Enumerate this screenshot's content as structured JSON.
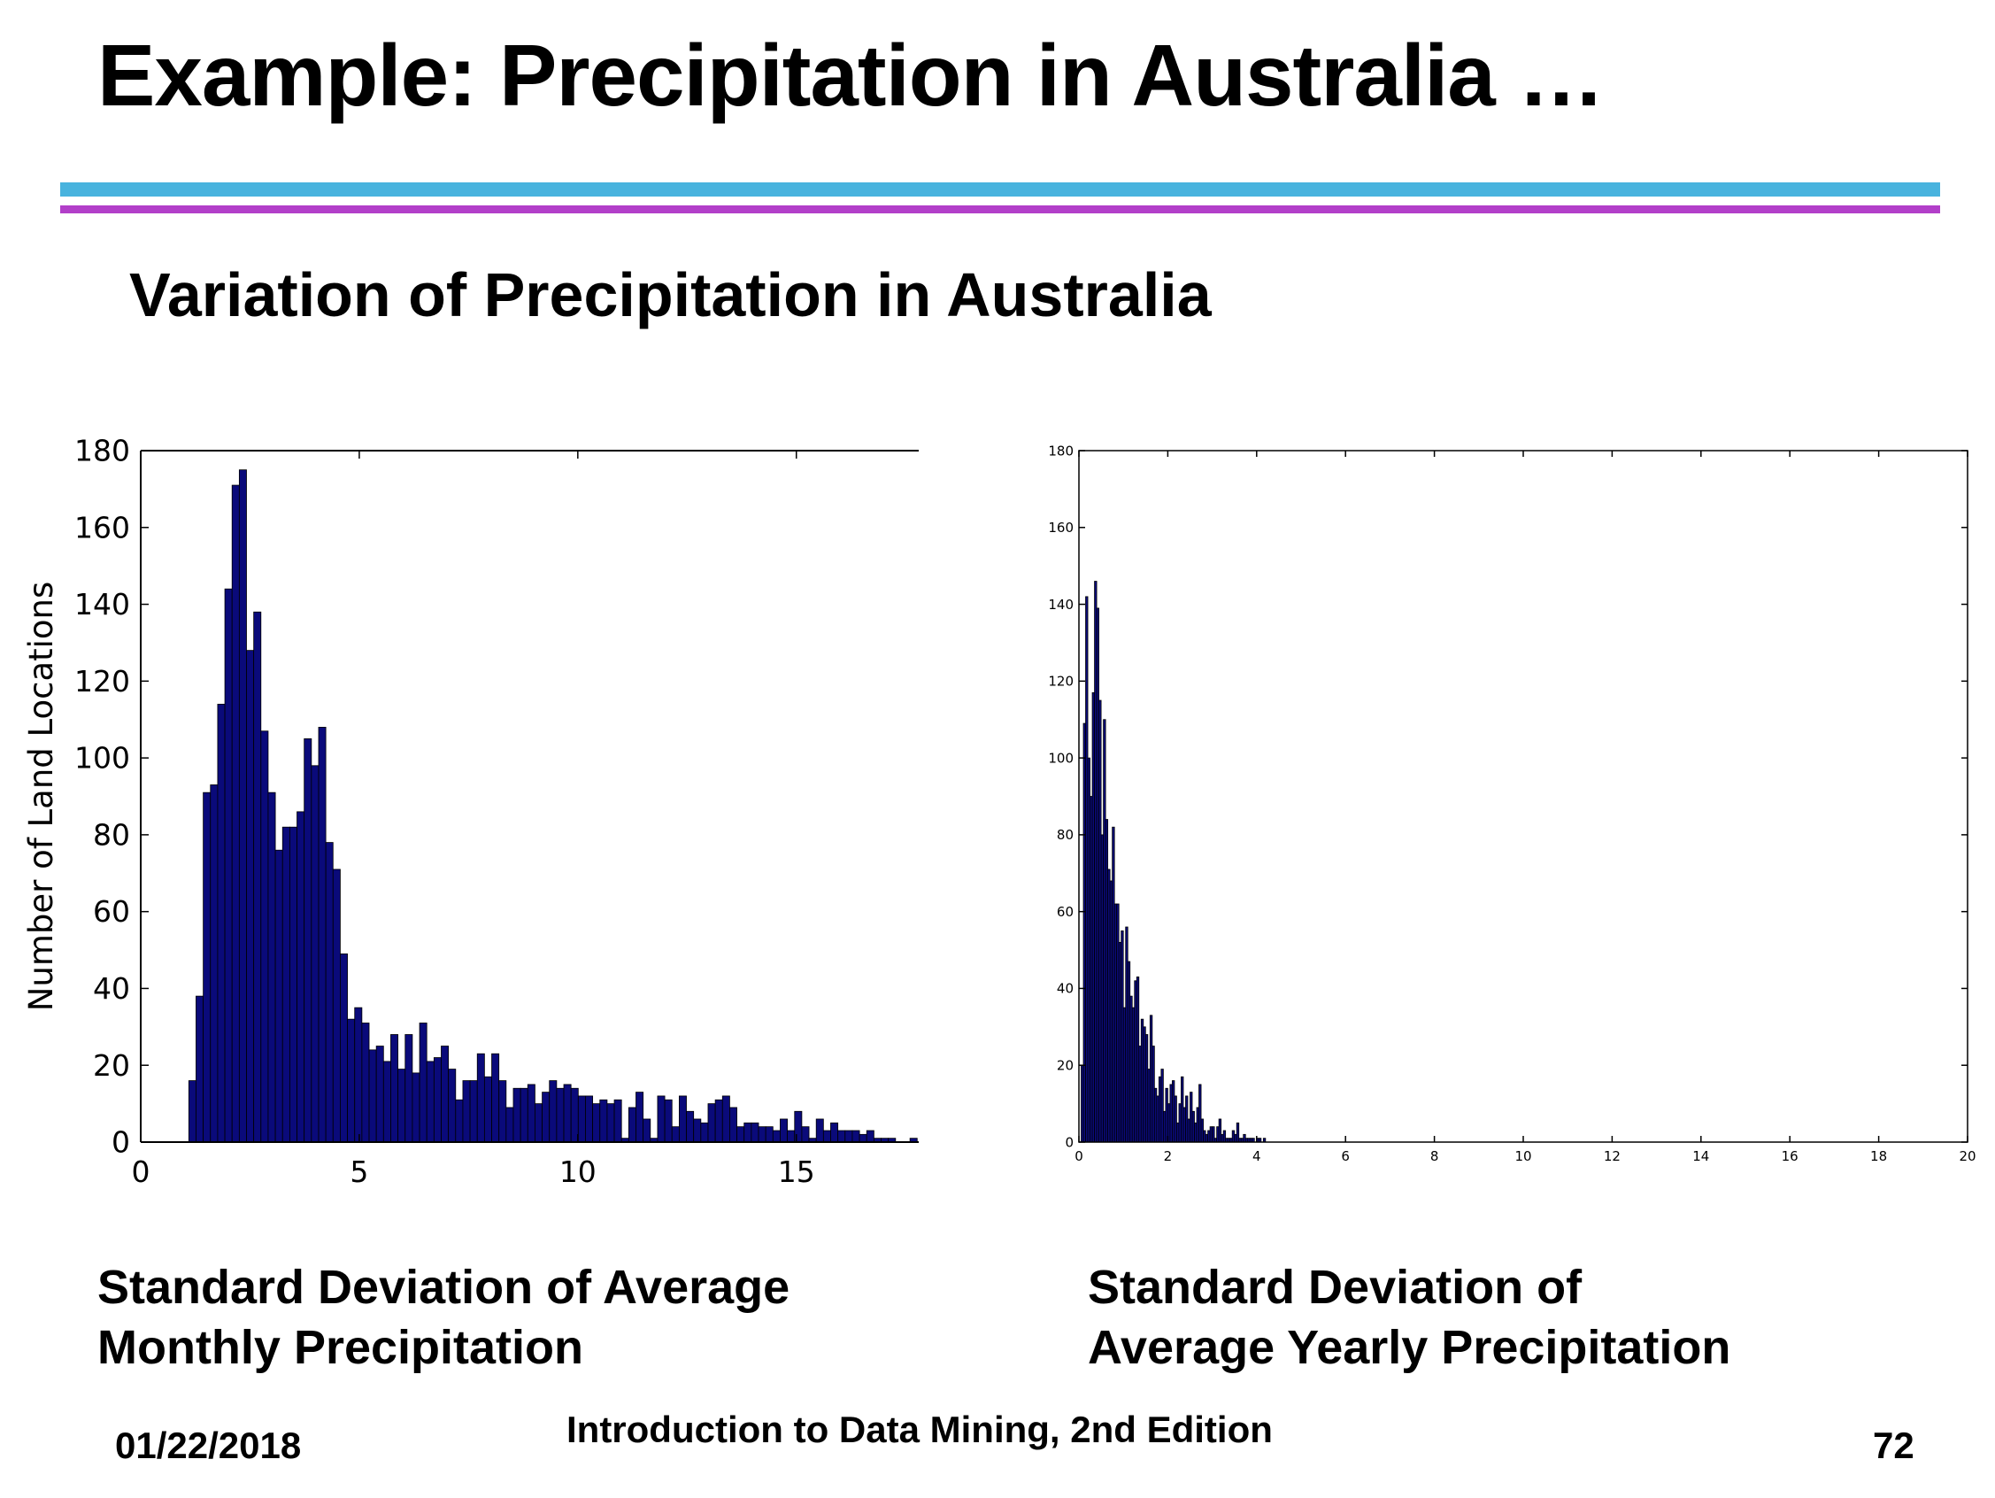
{
  "slide": {
    "title": "Example: Precipitation in Australia …",
    "subtitle": "Variation of Precipitation in Australia",
    "caption_left_line1": "Standard Deviation of Average",
    "caption_left_line2": "Monthly Precipitation",
    "caption_right_line1": "Standard Deviation of",
    "caption_right_line2": "Average Yearly Precipitation",
    "footer_date": "01/22/2018",
    "footer_book": "Introduction to Data Mining, 2nd Edition",
    "footer_page": "72",
    "colors": {
      "rule_top": "#48b3de",
      "rule_bottom": "#b23fc9",
      "bar_fill": "#0a0a7a",
      "bar_edge": "#000000"
    }
  },
  "chart_data": [
    {
      "type": "bar",
      "title": "",
      "xlabel": "",
      "ylabel": "Number of Land Locations",
      "xlim": [
        0,
        17.8
      ],
      "ylim": [
        0,
        180
      ],
      "xticks": [
        0,
        5,
        10,
        15
      ],
      "yticks": [
        0,
        20,
        40,
        60,
        80,
        100,
        120,
        140,
        160,
        180
      ],
      "grid": false,
      "bin_start": 1.1,
      "bin_width": 0.165,
      "values": [
        16,
        38,
        91,
        93,
        114,
        144,
        171,
        175,
        128,
        138,
        107,
        91,
        76,
        82,
        82,
        86,
        105,
        98,
        108,
        78,
        71,
        49,
        32,
        35,
        31,
        24,
        25,
        21,
        28,
        19,
        28,
        18,
        31,
        21,
        22,
        25,
        19,
        11,
        16,
        16,
        23,
        17,
        23,
        16,
        9,
        14,
        14,
        15,
        10,
        13,
        16,
        14,
        15,
        14,
        12,
        12,
        10,
        11,
        10,
        11,
        1,
        9,
        13,
        6,
        1,
        12,
        11,
        4,
        12,
        8,
        6,
        5,
        10,
        11,
        12,
        9,
        4,
        5,
        5,
        4,
        4,
        3,
        6,
        3,
        8,
        4,
        1,
        6,
        3,
        5,
        3,
        3,
        3,
        2,
        3,
        1,
        1,
        1,
        0,
        0,
        1,
        0
      ]
    },
    {
      "type": "bar",
      "title": "",
      "xlabel": "",
      "ylabel": "",
      "xlim": [
        0,
        20
      ],
      "ylim": [
        0,
        180
      ],
      "xticks": [
        0,
        2,
        4,
        6,
        8,
        10,
        12,
        14,
        16,
        18,
        20
      ],
      "yticks": [
        0,
        20,
        40,
        60,
        80,
        100,
        120,
        140,
        160,
        180
      ],
      "grid": false,
      "bin_start": 0.05,
      "bin_width": 0.05,
      "values": [
        20,
        109,
        142,
        100,
        90,
        117,
        146,
        139,
        115,
        80,
        110,
        84,
        71,
        68,
        82,
        62,
        62,
        52,
        55,
        35,
        56,
        47,
        38,
        35,
        42,
        43,
        25,
        32,
        30,
        28,
        19,
        33,
        25,
        14,
        12,
        17,
        19,
        8,
        14,
        10,
        15,
        16,
        12,
        5,
        10,
        17,
        9,
        12,
        6,
        13,
        8,
        5,
        9,
        15,
        6,
        3,
        2,
        3,
        4,
        4,
        1,
        4,
        6,
        2,
        3,
        1,
        1,
        1,
        3,
        2,
        5,
        1,
        1,
        2,
        1,
        1,
        1,
        1,
        0,
        1,
        1,
        0,
        1
      ]
    }
  ]
}
